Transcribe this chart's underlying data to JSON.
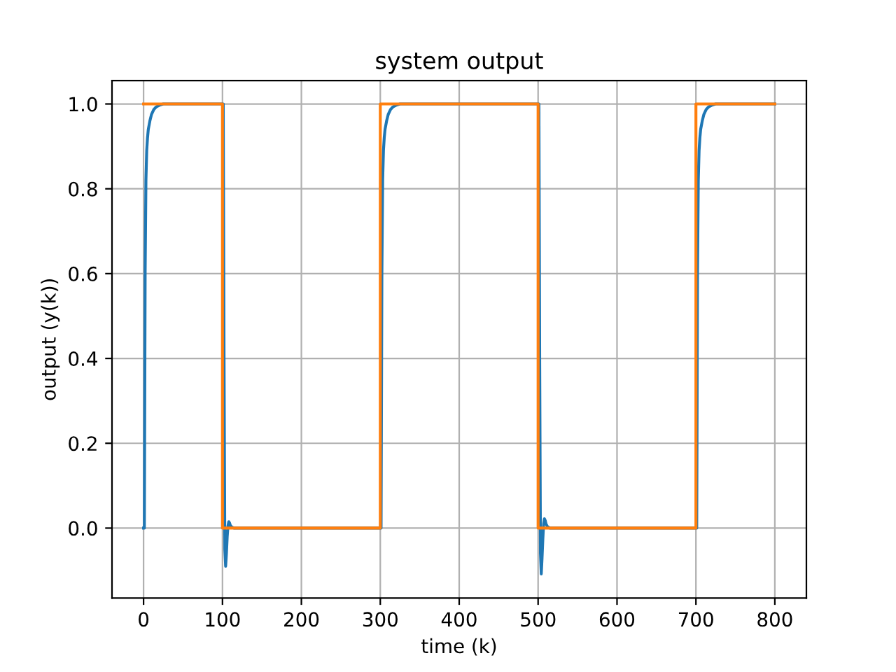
{
  "chart_data": {
    "type": "line",
    "title": "system output",
    "xlabel": "time (k)",
    "ylabel": "output (y(k))",
    "xlim": [
      -40,
      840
    ],
    "ylim": [
      -0.165,
      1.055
    ],
    "xticks": [
      0,
      100,
      200,
      300,
      400,
      500,
      600,
      700,
      800
    ],
    "yticks": [
      {
        "value": 0,
        "label": "0.0"
      },
      {
        "value": 0.2,
        "label": "0.2"
      },
      {
        "value": 0.4,
        "label": "0.4"
      },
      {
        "value": 0.6,
        "label": "0.6"
      },
      {
        "value": 0.8,
        "label": "0.8"
      },
      {
        "value": 1,
        "label": "1.0"
      }
    ],
    "grid": true,
    "series": [
      {
        "color": "#1f77b4",
        "x": [
          0,
          1,
          2,
          3,
          4,
          5,
          6,
          8,
          10,
          13,
          16,
          20,
          25,
          100,
          101,
          102,
          103,
          104,
          105,
          106,
          107,
          108,
          109,
          110,
          112,
          115,
          300,
          301,
          302,
          303,
          304,
          305,
          306,
          308,
          310,
          313,
          316,
          320,
          325,
          500,
          501,
          502,
          503,
          504,
          505,
          506,
          507,
          508,
          509,
          510,
          512,
          515,
          700,
          701,
          702,
          703,
          704,
          705,
          706,
          708,
          710,
          713,
          716,
          720,
          725,
          800
        ],
        "values": [
          0,
          0,
          0.6,
          0.82,
          0.89,
          0.92,
          0.94,
          0.96,
          0.975,
          0.987,
          0.993,
          0.997,
          1,
          1,
          1,
          0.4,
          -0.05,
          -0.09,
          -0.06,
          -0.02,
          0.005,
          0.015,
          0.012,
          0.006,
          0.002,
          0,
          0,
          0,
          0.6,
          0.82,
          0.89,
          0.92,
          0.94,
          0.96,
          0.975,
          0.987,
          0.993,
          0.997,
          1,
          1,
          1,
          0.4,
          -0.06,
          -0.108,
          -0.07,
          -0.025,
          0.01,
          0.022,
          0.018,
          0.01,
          0.003,
          0,
          0,
          0,
          0.6,
          0.82,
          0.89,
          0.92,
          0.94,
          0.96,
          0.975,
          0.987,
          0.993,
          0.997,
          1,
          1
        ]
      },
      {
        "color": "#ff7f0e",
        "x": [
          0,
          100,
          100,
          300,
          300,
          500,
          500,
          700,
          700,
          800
        ],
        "values": [
          1,
          1,
          0,
          0,
          1,
          1,
          0,
          0,
          1,
          1
        ]
      }
    ]
  }
}
